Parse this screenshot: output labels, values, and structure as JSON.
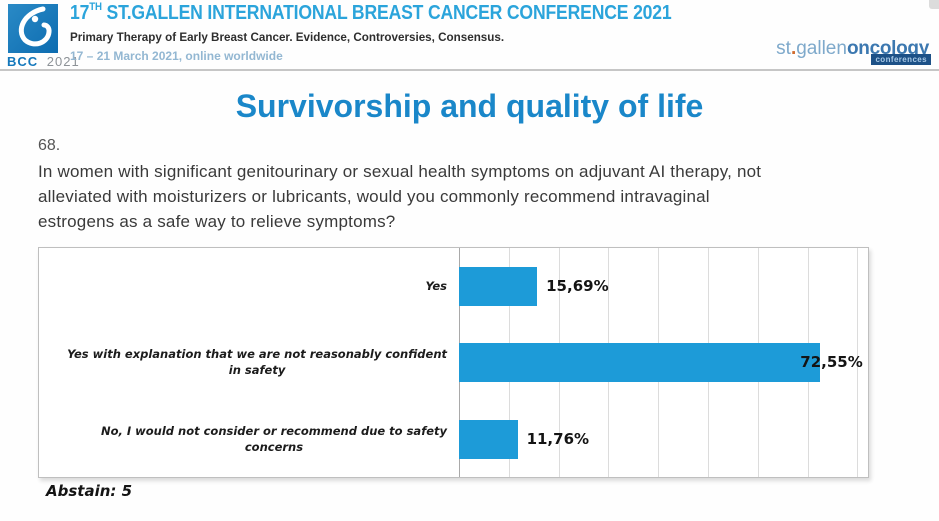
{
  "header": {
    "badge": {
      "bcc": "BCC",
      "year": "2021"
    },
    "title": {
      "num": "17",
      "sup": "TH",
      "rest": " ST.GALLEN INTERNATIONAL BREAST CANCER CONFERENCE 2021"
    },
    "subtitle": "Primary Therapy of Early Breast Cancer. Evidence, Controversies, Consensus.",
    "dates": "17 – 21 March 2021, online worldwide",
    "logo_right": {
      "part1": "st",
      "dot": ".",
      "part2": "gallen",
      "part3": "oncology",
      "tag": "conferences"
    }
  },
  "slide": {
    "title": "Survivorship and quality of life",
    "question_number": "68.",
    "question_lines": [
      "In women with significant genitourinary or sexual health symptoms on adjuvant AI therapy, not",
      "alleviated with moisturizers or lubricants, would you commonly recommend intravaginal",
      "estrogens as a safe way to relieve symptoms?"
    ],
    "abstain": "Abstain: 5"
  },
  "chart_data": {
    "type": "bar",
    "orientation": "horizontal",
    "title": "",
    "xlabel": "",
    "ylabel": "",
    "categories": [
      "Yes",
      "Yes with explanation that we are not reasonably confident in safety",
      "No, I would not consider or recommend due to safety concerns"
    ],
    "category_lines": [
      [
        "Yes"
      ],
      [
        "Yes with explanation that we are not reasonably confident",
        "in safety"
      ],
      [
        "No, I would not consider or recommend due to safety",
        "concerns"
      ]
    ],
    "values": [
      15.69,
      72.55,
      11.76
    ],
    "value_labels": [
      "15,69%",
      "72,55%",
      "11,76%"
    ],
    "xlim": [
      0,
      80
    ],
    "gridline_interval_pct": 10,
    "grid": true,
    "legend": false,
    "bar_color": "#1D9BD8"
  },
  "colors": {
    "header_blue": "#2BA4DB",
    "title_blue": "#1A87C9",
    "bar_blue": "#1D9BD8",
    "logo_blue": "#1377BB",
    "date_blue": "#93B7D2",
    "sg_light_blue": "#7EA9CB",
    "sg_dark_blue": "#3C78B0",
    "tag_navy": "#1D5187"
  }
}
